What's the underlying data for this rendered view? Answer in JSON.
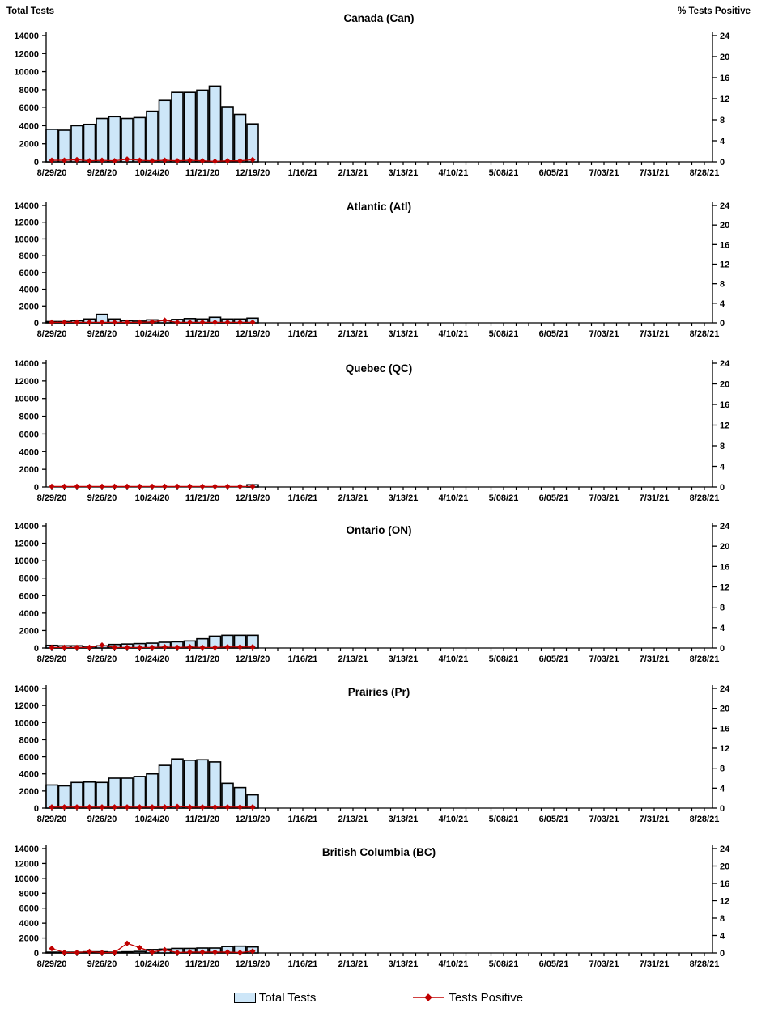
{
  "page": {
    "left_axis_title": "Total Tests",
    "right_axis_title": "% Tests Positive"
  },
  "axes": {
    "left_ticks": [
      0,
      2000,
      4000,
      6000,
      8000,
      10000,
      12000,
      14000
    ],
    "left_max": 14000,
    "right_ticks": [
      0,
      4,
      8,
      12,
      16,
      20,
      24
    ],
    "right_max": 24,
    "x_tick_labels": [
      "8/29/20",
      "9/26/20",
      "10/24/20",
      "11/21/20",
      "12/19/20",
      "1/16/21",
      "2/13/21",
      "3/13/21",
      "4/10/21",
      "5/08/21",
      "6/05/21",
      "7/03/21",
      "7/31/21",
      "8/28/21"
    ],
    "weeks_total": 53,
    "label_every_n_weeks": 4
  },
  "colors": {
    "bar_fill": "#CDE6F8",
    "bar_stroke": "#000000",
    "line": "#C00000",
    "text": "#000000"
  },
  "legend": {
    "items": [
      {
        "label": "Total Tests",
        "swatch": "bar"
      },
      {
        "label": "Tests Positive",
        "swatch": "line-diamond"
      }
    ]
  },
  "chart_data": [
    {
      "type": "bar+line",
      "title": "Canada (Can)",
      "categories": [
        "8/29/20",
        "9/5/20",
        "9/12/20",
        "9/19/20",
        "9/26/20",
        "10/3/20",
        "10/10/20",
        "10/17/20",
        "10/24/20",
        "10/31/20",
        "11/7/20",
        "11/14/20",
        "11/21/20",
        "11/28/20",
        "12/5/20",
        "12/12/20",
        "12/19/20"
      ],
      "series": [
        {
          "name": "Total Tests",
          "axis": "left",
          "values": [
            3600,
            3500,
            4000,
            4150,
            4800,
            5000,
            4800,
            4900,
            5600,
            6800,
            7700,
            7700,
            7950,
            8400,
            6100,
            5250,
            4200
          ]
        },
        {
          "name": "Tests Positive",
          "axis": "right",
          "values": [
            0.3,
            0.3,
            0.4,
            0.2,
            0.3,
            0.2,
            0.5,
            0.3,
            0.2,
            0.3,
            0.2,
            0.3,
            0.2,
            0.1,
            0.2,
            0.2,
            0.4
          ]
        }
      ],
      "left_ylim": [
        0,
        14000
      ],
      "right_ylim": [
        0,
        24
      ]
    },
    {
      "type": "bar+line",
      "title": "Atlantic (Atl)",
      "categories": [
        "8/29/20",
        "9/5/20",
        "9/12/20",
        "9/19/20",
        "9/26/20",
        "10/3/20",
        "10/10/20",
        "10/17/20",
        "10/24/20",
        "10/31/20",
        "11/7/20",
        "11/14/20",
        "11/21/20",
        "11/28/20",
        "12/5/20",
        "12/12/20",
        "12/19/20"
      ],
      "series": [
        {
          "name": "Total Tests",
          "axis": "left",
          "values": [
            150,
            150,
            250,
            450,
            1000,
            450,
            250,
            200,
            350,
            300,
            400,
            500,
            450,
            650,
            450,
            450,
            550
          ]
        },
        {
          "name": "Tests Positive",
          "axis": "right",
          "values": [
            0.1,
            0.1,
            0.1,
            0.1,
            0.1,
            0.1,
            0.1,
            0.1,
            0.2,
            0.5,
            0.1,
            0.1,
            0.1,
            0.1,
            0.1,
            0.1,
            0.1
          ]
        }
      ],
      "left_ylim": [
        0,
        14000
      ],
      "right_ylim": [
        0,
        24
      ]
    },
    {
      "type": "bar+line",
      "title": "Quebec (QC)",
      "categories": [
        "8/29/20",
        "9/5/20",
        "9/12/20",
        "9/19/20",
        "9/26/20",
        "10/3/20",
        "10/10/20",
        "10/17/20",
        "10/24/20",
        "10/31/20",
        "11/7/20",
        "11/14/20",
        "11/21/20",
        "11/28/20",
        "12/5/20",
        "12/12/20",
        "12/19/20"
      ],
      "series": [
        {
          "name": "Total Tests",
          "axis": "left",
          "values": [
            0,
            0,
            0,
            0,
            0,
            0,
            0,
            0,
            0,
            0,
            0,
            0,
            0,
            0,
            0,
            0,
            250
          ]
        },
        {
          "name": "Tests Positive",
          "axis": "right",
          "values": [
            0.1,
            0.1,
            0.1,
            0.1,
            0.1,
            0.1,
            0.1,
            0.1,
            0.1,
            0.1,
            0.1,
            0.1,
            0.1,
            0.1,
            0.1,
            0.1,
            0.1
          ]
        }
      ],
      "left_ylim": [
        0,
        14000
      ],
      "right_ylim": [
        0,
        24
      ]
    },
    {
      "type": "bar+line",
      "title": "Ontario (ON)",
      "categories": [
        "8/29/20",
        "9/5/20",
        "9/12/20",
        "9/19/20",
        "9/26/20",
        "10/3/20",
        "10/10/20",
        "10/17/20",
        "10/24/20",
        "10/31/20",
        "11/7/20",
        "11/14/20",
        "11/21/20",
        "11/28/20",
        "12/5/20",
        "12/12/20",
        "12/19/20"
      ],
      "series": [
        {
          "name": "Total Tests",
          "axis": "left",
          "values": [
            300,
            250,
            250,
            200,
            250,
            400,
            450,
            500,
            550,
            650,
            700,
            800,
            1050,
            1350,
            1450,
            1450,
            1450
          ]
        },
        {
          "name": "Tests Positive",
          "axis": "right",
          "values": [
            0.1,
            0.1,
            0.1,
            0.1,
            0.55,
            0.1,
            0.1,
            0.1,
            0.1,
            0.2,
            0.1,
            0.2,
            0.1,
            0.1,
            0.2,
            0.2,
            0.2
          ]
        }
      ],
      "left_ylim": [
        0,
        14000
      ],
      "right_ylim": [
        0,
        24
      ]
    },
    {
      "type": "bar+line",
      "title": "Prairies (Pr)",
      "categories": [
        "8/29/20",
        "9/5/20",
        "9/12/20",
        "9/19/20",
        "9/26/20",
        "10/3/20",
        "10/10/20",
        "10/17/20",
        "10/24/20",
        "10/31/20",
        "11/7/20",
        "11/14/20",
        "11/21/20",
        "11/28/20",
        "12/5/20",
        "12/12/20",
        "12/19/20"
      ],
      "series": [
        {
          "name": "Total Tests",
          "axis": "left",
          "values": [
            2700,
            2600,
            3000,
            3050,
            3000,
            3500,
            3500,
            3700,
            4000,
            5000,
            5750,
            5600,
            5650,
            5400,
            2900,
            2400,
            1550
          ]
        },
        {
          "name": "Tests Positive",
          "axis": "right",
          "values": [
            0.2,
            0.2,
            0.2,
            0.2,
            0.2,
            0.2,
            0.2,
            0.2,
            0.2,
            0.2,
            0.3,
            0.2,
            0.2,
            0.2,
            0.2,
            0.2,
            0.2
          ]
        }
      ],
      "left_ylim": [
        0,
        14000
      ],
      "right_ylim": [
        0,
        24
      ]
    },
    {
      "type": "bar+line",
      "title": "British Columbia (BC)",
      "categories": [
        "8/29/20",
        "9/5/20",
        "9/12/20",
        "9/19/20",
        "9/26/20",
        "10/3/20",
        "10/10/20",
        "10/17/20",
        "10/24/20",
        "10/31/20",
        "11/7/20",
        "11/14/20",
        "11/21/20",
        "11/28/20",
        "12/5/20",
        "12/12/20",
        "12/19/20"
      ],
      "series": [
        {
          "name": "Total Tests",
          "axis": "left",
          "values": [
            100,
            100,
            100,
            150,
            150,
            100,
            150,
            200,
            450,
            500,
            600,
            600,
            650,
            650,
            850,
            900,
            800
          ]
        },
        {
          "name": "Tests Positive",
          "axis": "right",
          "values": [
            1.0,
            0.1,
            0.1,
            0.3,
            0.1,
            0.1,
            2.2,
            1.2,
            0.2,
            0.7,
            0.1,
            0.2,
            0.2,
            0.2,
            0.2,
            0.1,
            0.4
          ]
        }
      ],
      "left_ylim": [
        0,
        14000
      ],
      "right_ylim": [
        0,
        24
      ]
    }
  ]
}
